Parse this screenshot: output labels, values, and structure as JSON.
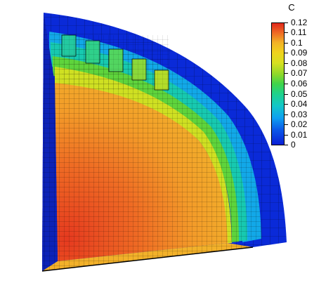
{
  "legend": {
    "title": "C",
    "ticks": [
      "0.12",
      "0.11",
      "0.1",
      "0.09",
      "0.08",
      "0.07",
      "0.06",
      "0.05",
      "0.04",
      "0.03",
      "0.02",
      "0.01",
      "0"
    ],
    "colors": [
      "#0a1fd6",
      "#0b57e8",
      "#0ea0f0",
      "#13c7c8",
      "#1fd28a",
      "#3fd44a",
      "#8fd82a",
      "#d6e021",
      "#f0d21d",
      "#f2b226",
      "#f08a27",
      "#ef5a25",
      "#e0281c"
    ]
  }
}
